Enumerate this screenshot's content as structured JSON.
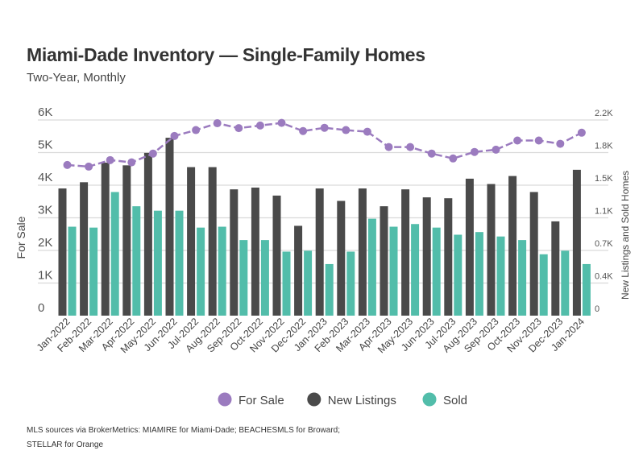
{
  "title": "Miami-Dade Inventory — Single-Family Homes",
  "subtitle": "Two-Year, Monthly",
  "footer": [
    "MLS sources via BrokerMetrics: MIAMIRE for Miami-Dade; BEACHESMLS for Broward;",
    "STELLAR for Orange"
  ],
  "chart_data": {
    "type": "bar+line",
    "categories": [
      "Jan-2022",
      "Feb-2022",
      "Mar-2022",
      "Apr-2022",
      "May-2022",
      "Jun-2022",
      "Jul-2022",
      "Aug-2022",
      "Sep-2022",
      "Oct-2022",
      "Nov-2022",
      "Dec-2022",
      "Jan-2023",
      "Feb-2023",
      "Mar-2023",
      "Apr-2023",
      "May-2023",
      "Jun-2023",
      "Jul-2023",
      "Aug-2023",
      "Sep-2023",
      "Oct-2023",
      "Nov-2023",
      "Dec-2023",
      "Jan-2024"
    ],
    "ylabel_left": "For Sale",
    "ylabel_right": "New Listings and Sold Homes",
    "ylim_left": [
      0,
      6000
    ],
    "ylim_right": [
      0,
      2200
    ],
    "left_ticks": [
      "0",
      "1K",
      "2K",
      "3K",
      "4K",
      "5K",
      "6K"
    ],
    "right_ticks": [
      "0",
      "0.4K",
      "0.7K",
      "1.1K",
      "1.5K",
      "1.8K",
      "2.2K"
    ],
    "grid": true,
    "legend_position": "bottom",
    "series": [
      {
        "name": "For Sale",
        "type": "line",
        "axis": "left",
        "color": "#9b7bbf",
        "values": [
          4620,
          4570,
          4770,
          4700,
          4970,
          5510,
          5690,
          5900,
          5750,
          5830,
          5910,
          5660,
          5760,
          5690,
          5640,
          5170,
          5170,
          4970,
          4820,
          5020,
          5090,
          5370,
          5370,
          5270,
          5610
        ]
      },
      {
        "name": "New Listings",
        "type": "bar",
        "axis": "right",
        "color": "#4a4a4a",
        "values": [
          1430,
          1500,
          1720,
          1690,
          1830,
          2000,
          1670,
          1670,
          1420,
          1440,
          1350,
          1010,
          1430,
          1290,
          1430,
          1230,
          1420,
          1330,
          1320,
          1540,
          1480,
          1570,
          1390,
          1060,
          1640
        ]
      },
      {
        "name": "Sold",
        "type": "bar",
        "axis": "right",
        "color": "#52bdaa",
        "values": [
          1000,
          990,
          1390,
          1230,
          1180,
          1180,
          990,
          1000,
          850,
          850,
          720,
          730,
          580,
          720,
          1090,
          1000,
          1030,
          990,
          910,
          940,
          890,
          850,
          690,
          730,
          580
        ]
      }
    ]
  }
}
